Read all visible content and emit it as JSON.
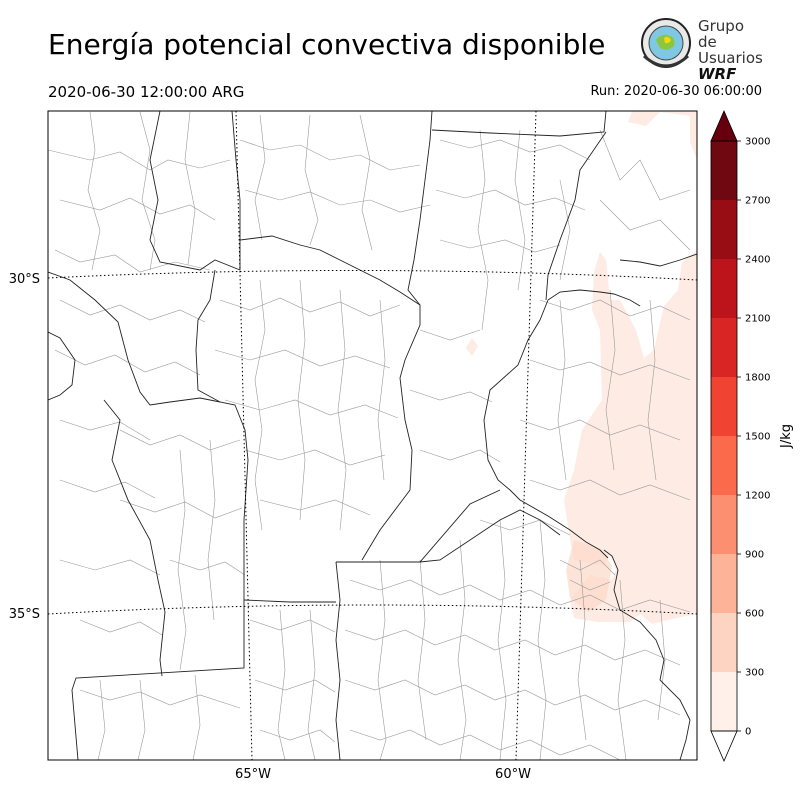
{
  "header": {
    "title": "Energía potencial convectiva disponible",
    "valid_time": "2020-06-30 12:00:00 ARG",
    "run_time": "Run: 2020-06-30 06:00:00"
  },
  "logo": {
    "line1": "Grupo de",
    "line2": "Usuarios",
    "line3": "WRF"
  },
  "map": {
    "lat_labels": [
      "30°S",
      "35°S"
    ],
    "lon_labels": [
      "65°W",
      "60°W"
    ],
    "field": "CAPE"
  },
  "colorbar": {
    "label": "J/kg",
    "levels": [
      0,
      300,
      600,
      900,
      1200,
      1500,
      1800,
      2100,
      2400,
      2700,
      3000
    ],
    "tick_labels": [
      "0",
      "300",
      "600",
      "900",
      "1200",
      "1500",
      "1800",
      "2100",
      "2400",
      "2700",
      "3000"
    ],
    "colors": [
      "#fff0e9",
      "#fdd4c2",
      "#fcb398",
      "#fc8f6f",
      "#fb6b4b",
      "#f14331",
      "#d92523",
      "#bc141a",
      "#980c13",
      "#6f0811"
    ],
    "under_color": "#ffffff",
    "over_color": "#67000d"
  }
}
